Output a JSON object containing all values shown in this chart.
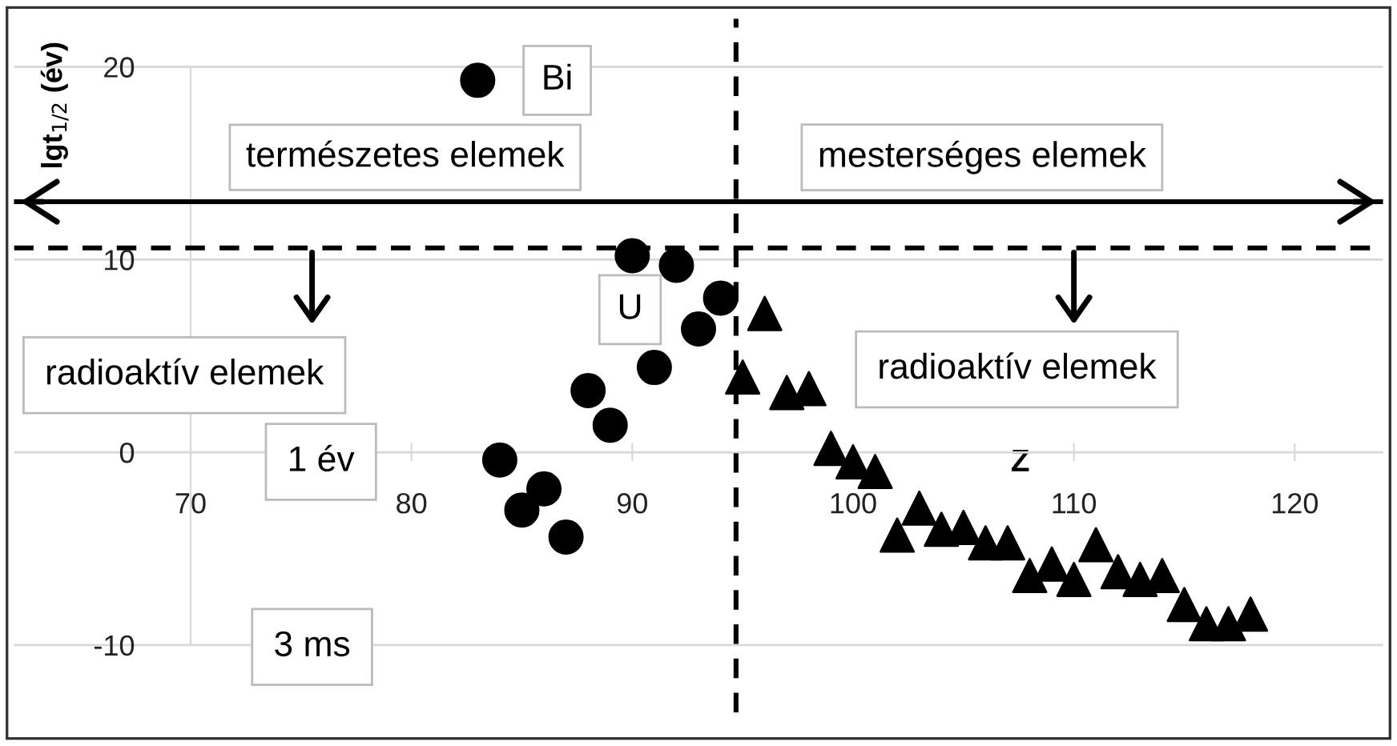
{
  "chart_data": {
    "type": "scatter",
    "xlabel": "Z",
    "ylabel": "lgt$_{1/2}$ (év)",
    "series": [
      {
        "color": "#000000",
        "marker": "circle",
        "x": [
          83,
          84,
          85,
          86,
          87,
          88,
          89,
          90,
          91,
          92,
          93,
          94
        ],
        "values": [
          19.3,
          -0.4,
          -3.0,
          -1.9,
          -4.4,
          3.2,
          1.4,
          10.2,
          4.4,
          9.7,
          6.4,
          8.0
        ]
      },
      {
        "color": "#000000",
        "marker": "triangle",
        "x": [
          95,
          96,
          97,
          98,
          99,
          100,
          101,
          102,
          103,
          104,
          105,
          106,
          107,
          108,
          109,
          110,
          111,
          112,
          113,
          114,
          115,
          116,
          117,
          118
        ],
        "values": [
          3.9,
          7.2,
          3.1,
          3.3,
          0.2,
          -0.5,
          -1.0,
          -4.3,
          -2.9,
          -4.0,
          -3.9,
          -4.7,
          -4.7,
          -6.4,
          -5.8,
          -6.6,
          -4.8,
          -6.2,
          -6.6,
          -6.4,
          -7.9,
          -8.9,
          -8.9,
          -8.4
        ]
      }
    ],
    "xlim": [
      62,
      124
    ],
    "ylim": [
      -13.5,
      22.5
    ],
    "xticks": [
      70,
      80,
      90,
      100,
      110,
      120
    ],
    "yticks": [
      -10,
      0,
      10,
      20
    ],
    "grid": "y",
    "ref_lines": [
      {
        "axis": "x",
        "value": 94.7,
        "color": "#000000",
        "line_style": "dashed"
      },
      {
        "axis": "y",
        "value": 10.6,
        "color": "#000000",
        "line_style": "dashed"
      },
      {
        "axis": "y",
        "value": 13,
        "color": "#000000",
        "line_style": "solid"
      }
    ],
    "annotations": [
      "Bi",
      "U",
      "természetes elemek",
      "mesterséges elemek",
      {
        "text": "radioaktív elemek",
        "x": 75.5,
        "y": 10.6
      },
      {
        "text": "radioaktív elemek",
        "x": 110,
        "y": 10.6
      },
      "1 év",
      "3 ms"
    ]
  }
}
